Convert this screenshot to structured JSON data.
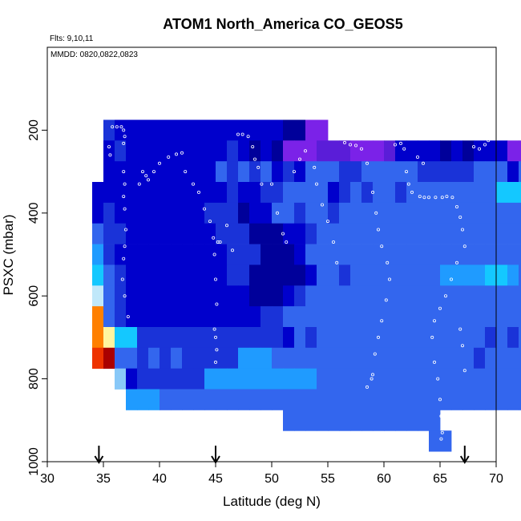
{
  "chart_data": {
    "type": "heatmap",
    "title": "ATOM1 North_America CO_GEOS5",
    "annotations": [
      "Flts: 9,10,11",
      "MMDD: 0820,0822,0823"
    ],
    "xlabel": "Latitude (deg N)",
    "ylabel": "PSXC (mbar)",
    "xlim": [
      30,
      70
    ],
    "ylim": [
      1000,
      0
    ],
    "x_ticks": [
      30,
      35,
      40,
      45,
      50,
      55,
      60,
      65,
      70
    ],
    "y_ticks": [
      200,
      400,
      600,
      800,
      1000
    ],
    "x_tick_labels": [
      "30",
      "35",
      "40",
      "45",
      "50",
      "55",
      "60",
      "65",
      "70"
    ],
    "y_tick_labels": [
      "200",
      "400",
      "600",
      "800",
      "1000"
    ],
    "lat_bin_width": 1,
    "pressure_bin_height": 50,
    "colors": {
      "d": "#0000cc",
      "D": "#00009a",
      "m": "#1a33d8",
      "M": "#2f55e0",
      "b": "#3366ee",
      "l": "#1f9bff",
      "c": "#14c8ff",
      "p": "#c0e8fa",
      "v": "#7b22e8",
      "V": "#5a1dd8",
      "y": "#fff5a0",
      "o": "#ff8000",
      "r": "#ee3300",
      "R": "#aa0000",
      "P": "#88c8f8"
    },
    "grid_rows": [
      {
        "p_top": 175,
        "start_lat": 35,
        "cells": "mdddddddddddddddDDvv"
      },
      {
        "p_top": 225,
        "start_lat": 35,
        "cells": "dmdddddddddmdDdDvvvVVVvvvVddddDdDdddvvv"
      },
      {
        "p_top": 275,
        "start_lat": 35,
        "cells": "ddddddddddbmbmbdmdbbbmmbbbbbmmmmmbbbdbdd"
      },
      {
        "p_top": 325,
        "start_lat": 34,
        "cells": "ddddddddddddmddmmbbbbdmbmbbmbbbbbbbbcccbbmb"
      },
      {
        "p_top": 375,
        "start_lat": 34,
        "cells": "dmddddddddmmmDddbbmbbmbbbbbbbbbbbbbbbbbbbd"
      },
      {
        "p_top": 425,
        "start_lat": 34,
        "cells": "bmmddddddddmmmDDDddmbbbbbbbbbbbbbbbbbbbbbd"
      },
      {
        "p_top": 475,
        "start_lat": 34,
        "cells": "lmddddddddddmmmDDDdbbbbbbbbbbbbbbbbbbbbld"
      },
      {
        "p_top": 525,
        "start_lat": 34,
        "cells": "cbmdddddddddmmDDDDDdbbmbbbbbbbbllllcclbbb"
      },
      {
        "p_top": 575,
        "start_lat": 34,
        "cells": "pbmdddddddddddDDDdmbbbbbbbbbbbbbbbbbbbbbb"
      },
      {
        "p_top": 625,
        "start_lat": 34,
        "cells": "obmddddddddddddmmbbbbbbbbbbbbbbbbbbbbbbbb"
      },
      {
        "p_top": 675,
        "start_lat": 34,
        "cells": "oyccmmmmmmmmmmmmmdbmbbbbbbbbbbbbbbbmbmbbb"
      },
      {
        "p_top": 725,
        "start_lat": 34,
        "cells": "rRbbmbmbmmmmmlllbbbbbbbbbbbbbbbbbbmbbbbbb"
      },
      {
        "p_top": 775,
        "start_lat": 36,
        "cells": "PdmmmmmmllllllllllbbbbbbbbbbbbbbbbbbbbbbB"
      },
      {
        "p_top": 825,
        "start_lat": 37,
        "cells": "lllbbbbbbbbbbbbbbbbbbbbbbbbbbbbbbbbbbb"
      },
      {
        "p_top": 875,
        "start_lat": 51,
        "cells": "bbbbbbbbbbbbbb"
      },
      {
        "p_top": 925,
        "start_lat": 64,
        "cells": "bb"
      }
    ],
    "flight_track_points": [
      [
        35.8,
        192
      ],
      [
        36.2,
        192
      ],
      [
        36.6,
        192
      ],
      [
        35.5,
        240
      ],
      [
        35.6,
        260
      ],
      [
        36.8,
        200
      ],
      [
        36.9,
        215
      ],
      [
        36.8,
        232
      ],
      [
        36.8,
        300
      ],
      [
        36.9,
        330
      ],
      [
        36.8,
        360
      ],
      [
        36.9,
        390
      ],
      [
        37.0,
        440
      ],
      [
        36.9,
        480
      ],
      [
        36.8,
        510
      ],
      [
        36.7,
        560
      ],
      [
        36.9,
        600
      ],
      [
        37.2,
        650
      ],
      [
        38.5,
        300
      ],
      [
        38.8,
        310
      ],
      [
        39.0,
        320
      ],
      [
        39.5,
        300
      ],
      [
        38.2,
        330
      ],
      [
        40.0,
        280
      ],
      [
        40.8,
        265
      ],
      [
        41.5,
        258
      ],
      [
        42.0,
        255
      ],
      [
        42.3,
        300
      ],
      [
        43.0,
        330
      ],
      [
        43.5,
        350
      ],
      [
        44.0,
        390
      ],
      [
        44.5,
        420
      ],
      [
        44.8,
        460
      ],
      [
        44.9,
        500
      ],
      [
        45.0,
        560
      ],
      [
        45.1,
        620
      ],
      [
        44.9,
        680
      ],
      [
        45.0,
        700
      ],
      [
        45.1,
        730
      ],
      [
        45.0,
        760
      ],
      [
        45.2,
        470
      ],
      [
        45.4,
        470
      ],
      [
        46.0,
        430
      ],
      [
        46.5,
        490
      ],
      [
        47.0,
        210
      ],
      [
        47.4,
        210
      ],
      [
        47.9,
        215
      ],
      [
        48.3,
        240
      ],
      [
        48.5,
        270
      ],
      [
        48.8,
        290
      ],
      [
        49.1,
        330
      ],
      [
        50.0,
        330
      ],
      [
        50.5,
        400
      ],
      [
        51.0,
        450
      ],
      [
        51.3,
        470
      ],
      [
        52.0,
        300
      ],
      [
        52.5,
        270
      ],
      [
        53.0,
        250
      ],
      [
        53.8,
        290
      ],
      [
        54.0,
        330
      ],
      [
        54.5,
        380
      ],
      [
        55.0,
        420
      ],
      [
        55.5,
        470
      ],
      [
        55.8,
        520
      ],
      [
        56.5,
        230
      ],
      [
        57.0,
        235
      ],
      [
        57.5,
        237
      ],
      [
        58.0,
        245
      ],
      [
        58.5,
        280
      ],
      [
        59.0,
        350
      ],
      [
        59.3,
        400
      ],
      [
        59.5,
        440
      ],
      [
        59.8,
        480
      ],
      [
        60.3,
        520
      ],
      [
        60.5,
        560
      ],
      [
        60.2,
        610
      ],
      [
        59.8,
        660
      ],
      [
        59.5,
        700
      ],
      [
        59.2,
        740
      ],
      [
        59.0,
        790
      ],
      [
        58.9,
        800
      ],
      [
        58.5,
        820
      ],
      [
        61.0,
        235
      ],
      [
        61.5,
        232
      ],
      [
        61.8,
        245
      ],
      [
        62.0,
        300
      ],
      [
        62.2,
        330
      ],
      [
        62.5,
        350
      ],
      [
        63.2,
        360
      ],
      [
        63.6,
        362
      ],
      [
        64.0,
        362
      ],
      [
        64.6,
        362
      ],
      [
        65.2,
        362
      ],
      [
        65.6,
        360
      ],
      [
        66.1,
        362
      ],
      [
        66.5,
        385
      ],
      [
        66.8,
        410
      ],
      [
        67.0,
        440
      ],
      [
        67.2,
        480
      ],
      [
        66.5,
        520
      ],
      [
        66.0,
        560
      ],
      [
        65.5,
        600
      ],
      [
        65.0,
        630
      ],
      [
        64.5,
        660
      ],
      [
        64.3,
        700
      ],
      [
        64.5,
        760
      ],
      [
        64.8,
        800
      ],
      [
        65.0,
        850
      ],
      [
        65.1,
        890
      ],
      [
        65.2,
        930
      ],
      [
        65.1,
        945
      ],
      [
        66.8,
        680
      ],
      [
        67.0,
        720
      ],
      [
        67.2,
        780
      ],
      [
        68.0,
        240
      ],
      [
        68.5,
        245
      ],
      [
        69.0,
        235
      ],
      [
        69.3,
        225
      ],
      [
        69.6,
        215
      ],
      [
        63.0,
        265
      ],
      [
        63.5,
        280
      ]
    ],
    "arrows_lat": [
      34.6,
      45.0,
      67.2
    ]
  }
}
